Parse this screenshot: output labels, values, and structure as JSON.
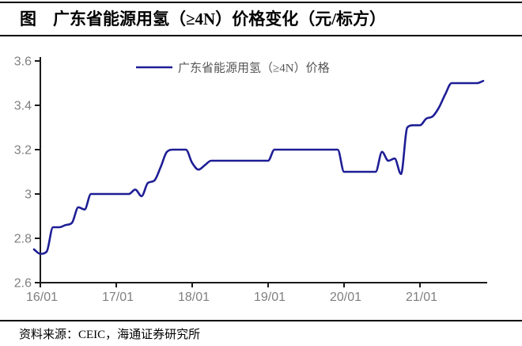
{
  "figure": {
    "title_full": "图　广东省能源用氢（≥4N）价格变化（元/标方）",
    "source": "资料来源：CEIC，海通证券研究所"
  },
  "colors": {
    "line": "#1e1e96",
    "axis": "#1a1a1a",
    "tick_label": "#7f7f7f",
    "legend_text": "#555555",
    "border": "#000000",
    "background": "#ffffff"
  },
  "chart_data": {
    "type": "line",
    "title": "广东省能源用氢（≥4N）价格变化（元/标方）",
    "xlabel": "",
    "ylabel": "",
    "ylim": [
      2.6,
      3.6
    ],
    "y_tick_values": [
      2.6,
      2.8,
      3.0,
      3.2,
      3.4,
      3.6
    ],
    "y_tick_labels": [
      "2.6",
      "2.8",
      "3",
      "3.2",
      "3.4",
      "3.6"
    ],
    "x_tick_labels": [
      "16/01",
      "17/01",
      "18/01",
      "19/01",
      "20/01",
      "21/01"
    ],
    "grid": false,
    "legend_position": "top-center",
    "legend": [
      "广东省能源用氢（≥4N）价格"
    ],
    "series": [
      {
        "name": "广东省能源用氢（≥4N）价格",
        "start": "2015-12",
        "frequency": "monthly",
        "values": [
          2.75,
          2.73,
          2.74,
          2.85,
          2.85,
          2.86,
          2.87,
          2.94,
          2.93,
          3.0,
          3.0,
          3.0,
          3.0,
          3.0,
          3.0,
          3.0,
          3.02,
          2.99,
          3.05,
          3.06,
          3.12,
          3.19,
          3.2,
          3.2,
          3.2,
          3.14,
          3.11,
          3.13,
          3.15,
          3.15,
          3.15,
          3.15,
          3.15,
          3.15,
          3.15,
          3.15,
          3.15,
          3.15,
          3.2,
          3.2,
          3.2,
          3.2,
          3.2,
          3.2,
          3.2,
          3.2,
          3.2,
          3.2,
          3.2,
          3.1,
          3.1,
          3.1,
          3.1,
          3.1,
          3.1,
          3.19,
          3.15,
          3.16,
          3.09,
          3.3,
          3.31,
          3.31,
          3.34,
          3.35,
          3.39,
          3.45,
          3.5,
          3.5,
          3.5,
          3.5,
          3.5,
          3.51
        ]
      }
    ]
  }
}
